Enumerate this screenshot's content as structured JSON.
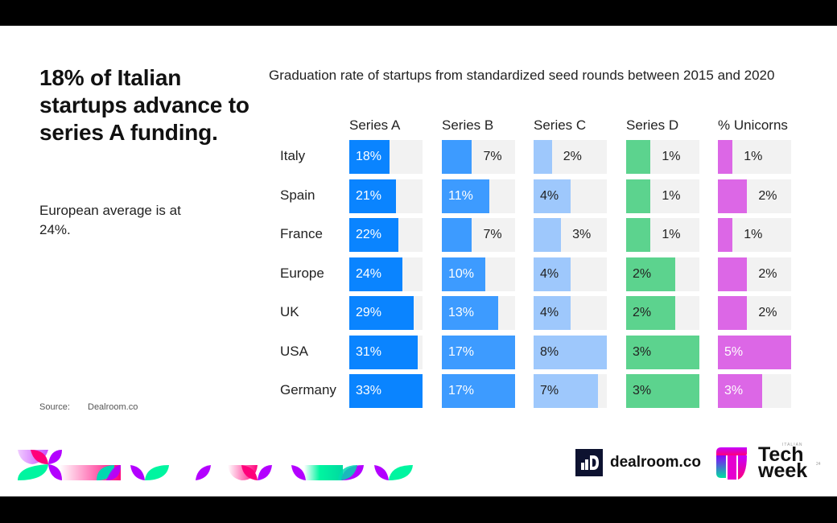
{
  "headline": "18% of Italian startups advance to series A funding.",
  "subtext": "European average is at 24%.",
  "source": {
    "label": "Source:",
    "value": "Dealroom.co"
  },
  "logos": {
    "dealroom": "dealroom.co",
    "techweek_line1": "Tech",
    "techweek_line2": "week",
    "techweek_tag": "ITALIAN",
    "techweek_year": "24"
  },
  "colors": {
    "series_a": "#0a84ff",
    "series_b": "#3d9bff",
    "series_c": "#9ec8fc",
    "series_d": "#5cd38e",
    "unicorns": "#dc67e6",
    "track": "#f2f2f2"
  },
  "chart_data": {
    "type": "bar",
    "title": "Graduation rate of startups from standardized seed rounds between 2015 and 2020",
    "categories": [
      "Italy",
      "Spain",
      "France",
      "Europe",
      "UK",
      "USA",
      "Germany"
    ],
    "series": [
      {
        "name": "Series A",
        "values": [
          18,
          21,
          22,
          24,
          29,
          31,
          33
        ],
        "max": 33
      },
      {
        "name": "Series B",
        "values": [
          7,
          11,
          7,
          10,
          13,
          17,
          17
        ],
        "max": 17
      },
      {
        "name": "Series C",
        "values": [
          2,
          4,
          3,
          4,
          4,
          8,
          7
        ],
        "max": 8
      },
      {
        "name": "Series D",
        "values": [
          1,
          1,
          1,
          2,
          2,
          3,
          3
        ],
        "max": 3
      },
      {
        "name": "% Unicorns",
        "values": [
          1,
          2,
          1,
          2,
          2,
          5,
          3
        ],
        "max": 5
      }
    ],
    "unit": "%",
    "orientation": "horizontal small multiples"
  }
}
